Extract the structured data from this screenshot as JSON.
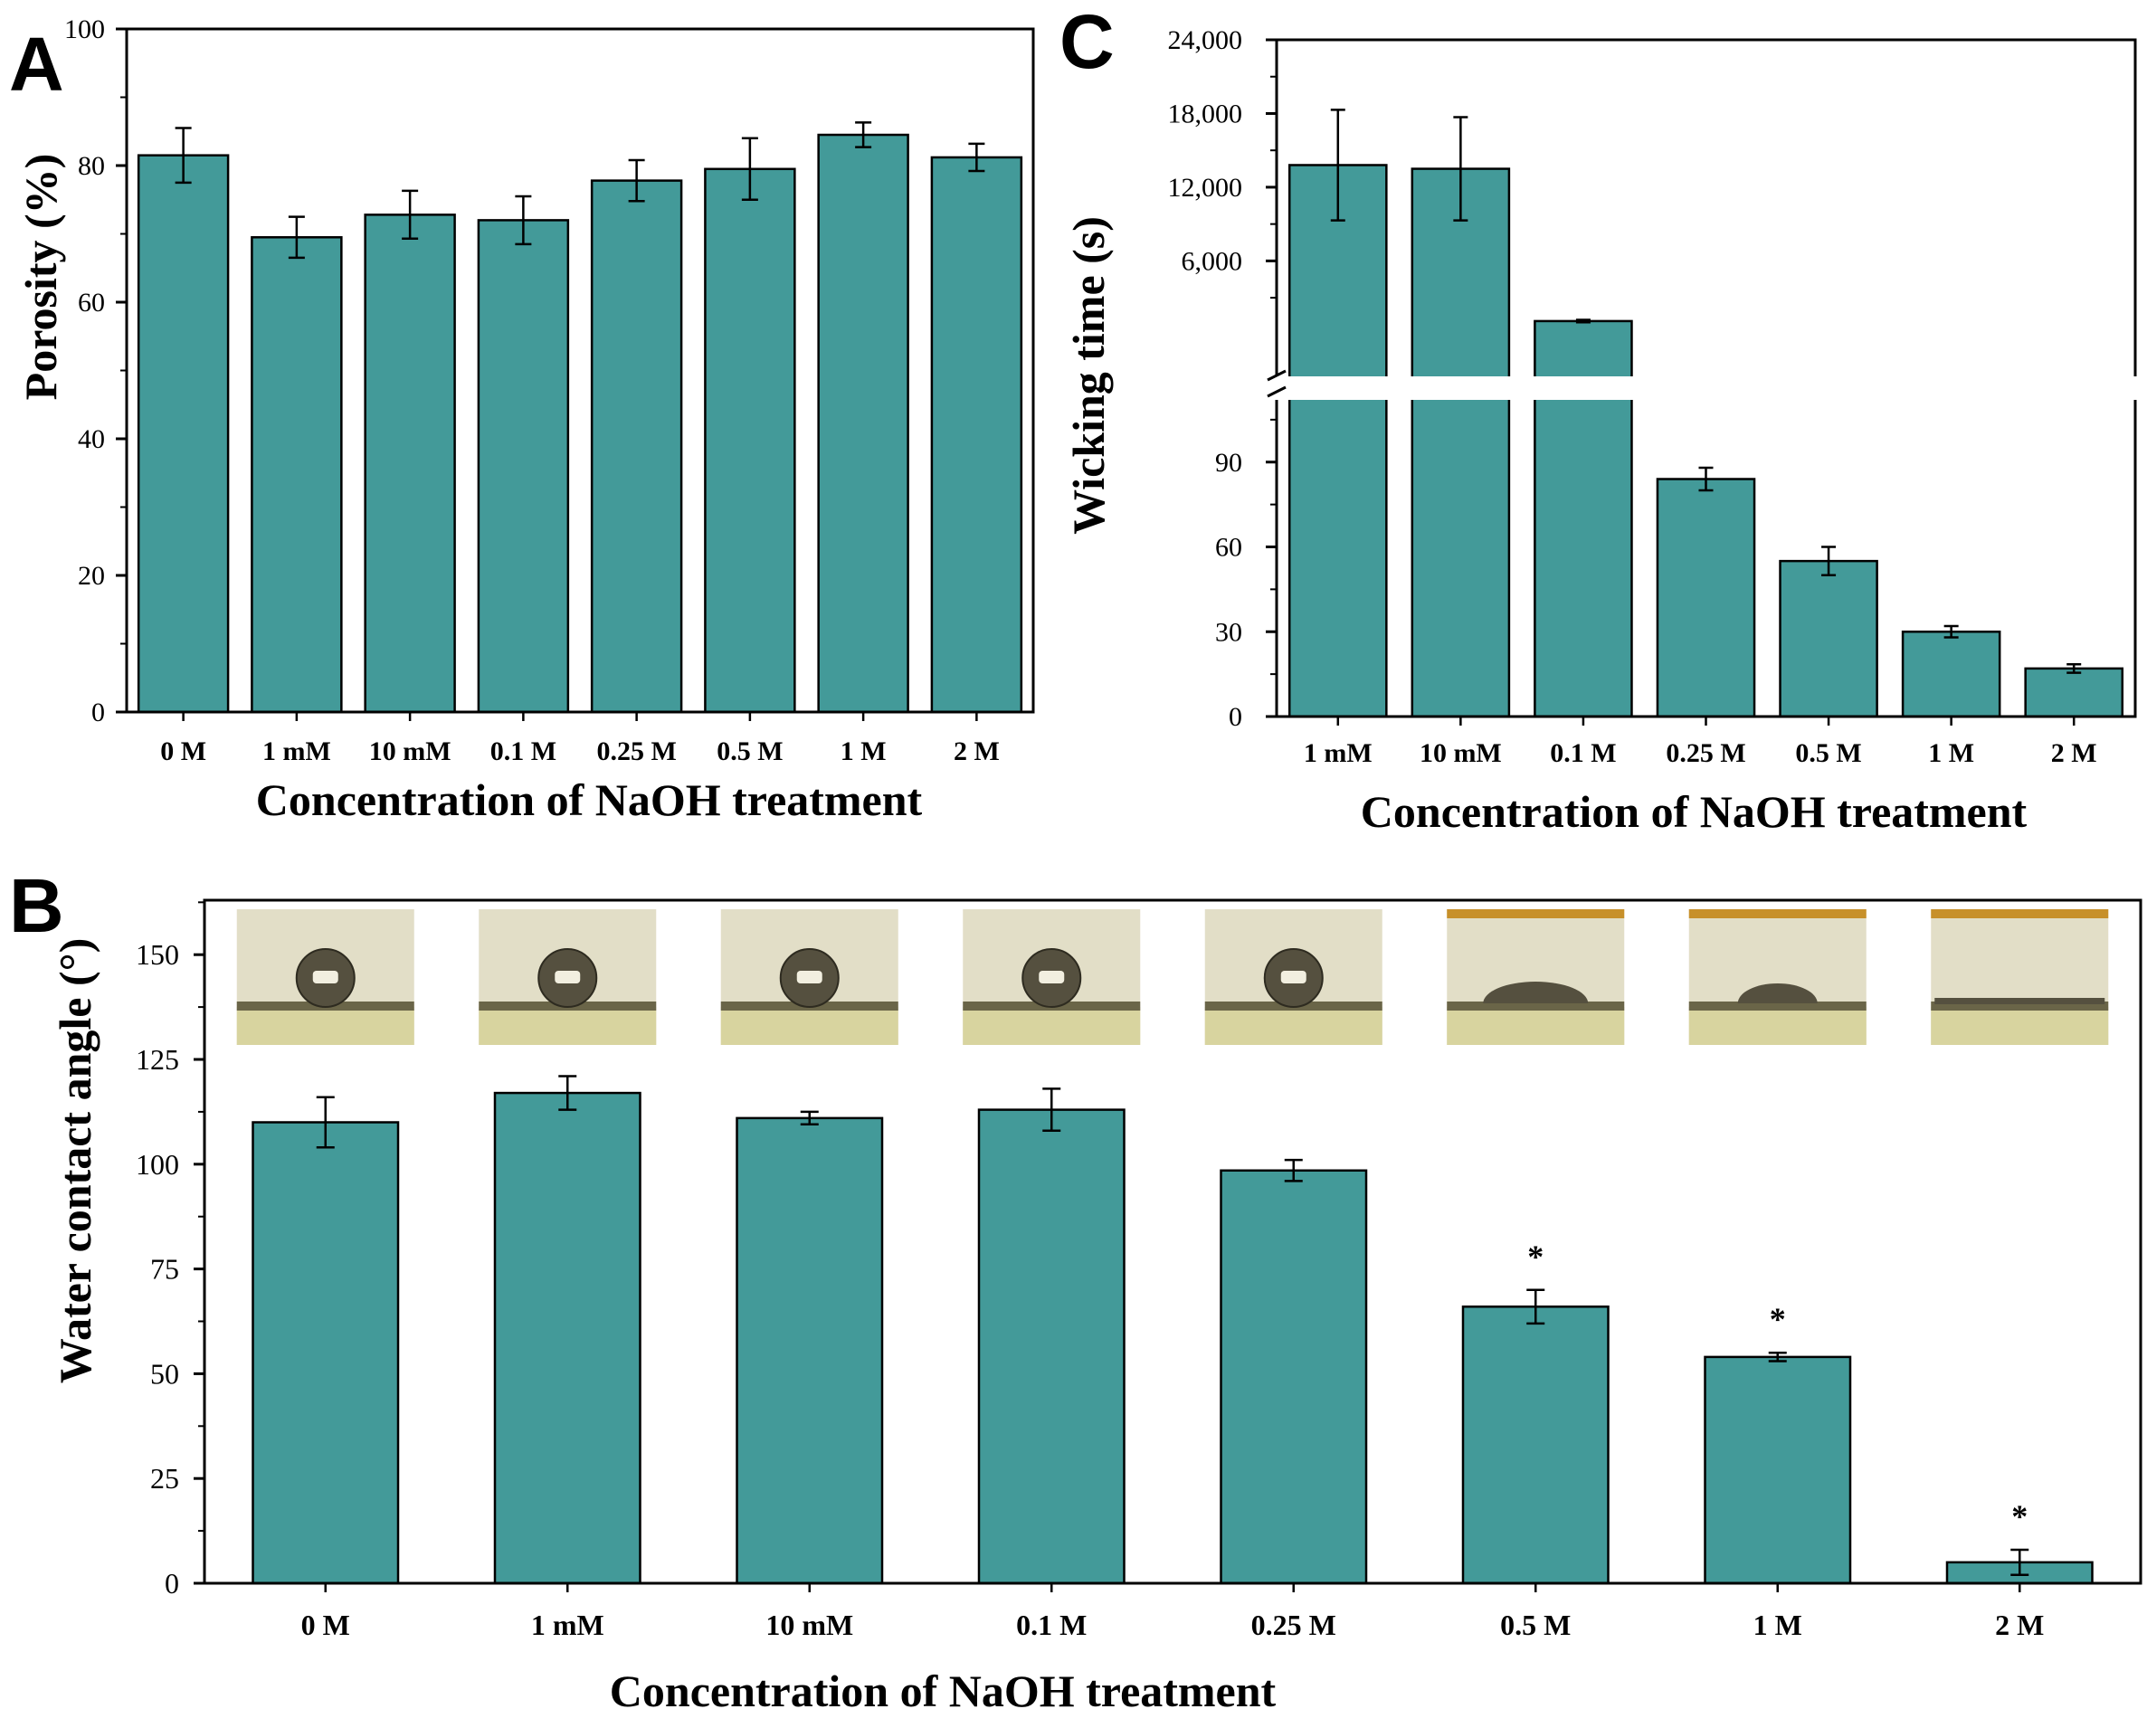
{
  "colors": {
    "bar": "#439a99",
    "axis": "#000000",
    "background": "#ffffff",
    "photo_background": "#e2dec7",
    "photo_stage": "#d8d49f",
    "droplet": "#55503f"
  },
  "chart_data": [
    {
      "panel": "A",
      "type": "bar",
      "title": "",
      "xlabel": "Concentration of NaOH treatment",
      "ylabel": "Porosity (%)",
      "ylim": [
        0,
        100
      ],
      "yticks": [
        0,
        20,
        40,
        60,
        80,
        100
      ],
      "ytick_labels": [
        "0",
        "20",
        "40",
        "60",
        "80",
        "100"
      ],
      "categories": [
        "0 M",
        "1 mM",
        "10 mM",
        "0.1 M",
        "0.25 M",
        "0.5 M",
        "1 M",
        "2 M"
      ],
      "values": [
        81.5,
        69.5,
        72.8,
        72,
        77.8,
        79.5,
        84.5,
        81.2
      ],
      "errors": [
        4,
        3,
        3.5,
        3.5,
        3,
        4.5,
        1.8,
        2
      ]
    },
    {
      "panel": "B",
      "type": "bar",
      "title": "",
      "xlabel": "Concentration of NaOH treatment",
      "ylabel": "Water contact angle (°)",
      "ylim": [
        0,
        163
      ],
      "yticks": [
        0,
        25,
        50,
        75,
        100,
        125,
        150
      ],
      "ytick_labels": [
        "0",
        "25",
        "50",
        "75",
        "100",
        "125",
        "150"
      ],
      "categories": [
        "0 M",
        "1 mM",
        "10 mM",
        "0.1 M",
        "0.25 M",
        "0.5 M",
        "1 M",
        "2 M"
      ],
      "values": [
        110,
        117,
        111,
        113,
        98.5,
        66,
        54,
        5
      ],
      "errors": [
        6,
        4,
        1.5,
        5,
        2.5,
        4,
        1,
        3
      ],
      "significance": [
        "",
        "",
        "",
        "",
        "",
        "*",
        "*",
        "*"
      ],
      "droplet_images": [
        "droplet 0 M",
        "droplet 1 mM",
        "droplet 10 mM",
        "droplet 0.1 M",
        "droplet 0.25 M",
        "droplet 0.5 M",
        "droplet 1 M",
        "droplet 2 M"
      ]
    },
    {
      "panel": "C",
      "type": "bar",
      "title": "",
      "xlabel": "Concentration of NaOH treatment",
      "ylabel": "Wicking time (s)",
      "axis_break": true,
      "lower_ylim": [
        0,
        112
      ],
      "upper_ylim": [
        -3400,
        24000
      ],
      "lower_yticks": [
        0,
        30,
        60,
        90
      ],
      "lower_ytick_labels": [
        "0",
        "30",
        "60",
        "90"
      ],
      "upper_yticks": [
        6000,
        12000,
        18000,
        24000
      ],
      "upper_ytick_labels": [
        "6,000",
        "12,000",
        "18,000",
        "24,000"
      ],
      "categories": [
        "1 mM",
        "10 mM",
        "0.1 M",
        "0.25 M",
        "0.5 M",
        "1 M",
        "2 M"
      ],
      "values": [
        13800,
        13500,
        1100,
        84,
        55,
        30,
        17
      ],
      "errors": [
        4500,
        4200,
        100,
        4,
        5,
        2,
        1.5
      ]
    }
  ]
}
